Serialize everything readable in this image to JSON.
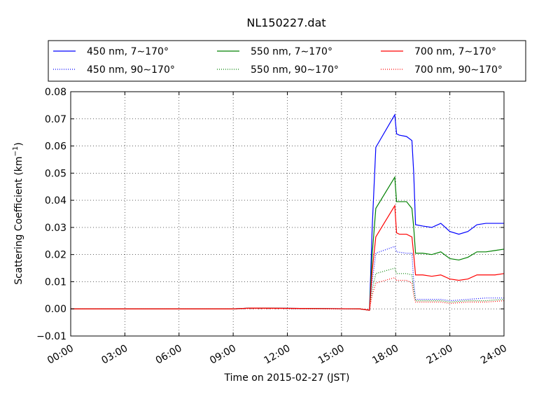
{
  "chart_data": {
    "type": "line",
    "title": "NL150227.dat",
    "xlabel": "Time on 2015-02-27 (JST)",
    "ylabel": "Scattering Coefficient (km",
    "ylabel_sup": "−1",
    "ylabel_close": ")",
    "xlim": [
      0,
      24
    ],
    "ylim": [
      -0.01,
      0.08
    ],
    "x_ticks": [
      0,
      3,
      6,
      9,
      12,
      15,
      18,
      21,
      24
    ],
    "x_tick_labels": [
      "00:00",
      "03:00",
      "06:00",
      "09:00",
      "12:00",
      "15:00",
      "18:00",
      "21:00",
      "24:00"
    ],
    "y_ticks": [
      -0.01,
      0.0,
      0.01,
      0.02,
      0.03,
      0.04,
      0.05,
      0.06,
      0.07,
      0.08
    ],
    "y_tick_labels": [
      "−0.01",
      "0.00",
      "0.01",
      "0.02",
      "0.03",
      "0.04",
      "0.05",
      "0.06",
      "0.07",
      "0.08"
    ],
    "grid": true,
    "legend_position": "top, above plot",
    "series": [
      {
        "name": "450 nm, 7∼170°",
        "color": "#0000ff",
        "style": "solid",
        "x": [
          0,
          9,
          10,
          16,
          16.55,
          16.7,
          16.9,
          17.95,
          18.05,
          18.2,
          18.6,
          18.9,
          19.0,
          19.1,
          19.5,
          20.0,
          20.5,
          21.0,
          21.5,
          22.0,
          22.5,
          23.0,
          23.5,
          24.0
        ],
        "y": [
          0.0,
          0.0,
          0.0003,
          0.0,
          -0.0005,
          0.03,
          0.0595,
          0.0715,
          0.0645,
          0.064,
          0.0635,
          0.062,
          0.05,
          0.031,
          0.0305,
          0.03,
          0.0315,
          0.0285,
          0.0275,
          0.0285,
          0.031,
          0.0315,
          0.0315,
          0.0315
        ]
      },
      {
        "name": "450 nm, 90∼170°",
        "color": "#0000ff",
        "style": "dotted",
        "x": [
          0,
          9,
          10,
          16,
          16.55,
          16.7,
          16.9,
          17.95,
          18.05,
          18.6,
          18.9,
          19.0,
          19.1,
          19.5,
          20.5,
          21.0,
          22.0,
          23.0,
          24.0
        ],
        "y": [
          0.0,
          0.0,
          0.0001,
          0.0,
          -0.0003,
          0.01,
          0.0205,
          0.023,
          0.021,
          0.0205,
          0.0205,
          0.01,
          0.0035,
          0.0035,
          0.0035,
          0.003,
          0.0035,
          0.004,
          0.004
        ]
      },
      {
        "name": "550 nm, 7∼170°",
        "color": "#008000",
        "style": "solid",
        "x": [
          0,
          9,
          10,
          16,
          16.55,
          16.7,
          16.9,
          17.95,
          18.05,
          18.2,
          18.6,
          18.9,
          19.0,
          19.1,
          19.5,
          20.0,
          20.5,
          21.0,
          21.5,
          22.0,
          22.5,
          23.0,
          23.5,
          24.0
        ],
        "y": [
          0.0,
          0.0,
          0.0003,
          0.0,
          -0.0005,
          0.02,
          0.037,
          0.0485,
          0.0395,
          0.0395,
          0.0395,
          0.037,
          0.03,
          0.0205,
          0.0205,
          0.02,
          0.021,
          0.0185,
          0.018,
          0.019,
          0.021,
          0.021,
          0.0215,
          0.022
        ]
      },
      {
        "name": "550 nm, 90∼170°",
        "color": "#008000",
        "style": "dotted",
        "x": [
          0,
          9,
          10,
          16,
          16.55,
          16.7,
          16.9,
          17.95,
          18.05,
          18.6,
          18.9,
          19.0,
          19.1,
          19.5,
          20.5,
          21.0,
          22.0,
          23.0,
          24.0
        ],
        "y": [
          0.0,
          0.0,
          0.0001,
          0.0,
          -0.0003,
          0.007,
          0.013,
          0.015,
          0.013,
          0.013,
          0.0125,
          0.007,
          0.003,
          0.003,
          0.003,
          0.0025,
          0.003,
          0.003,
          0.0035
        ]
      },
      {
        "name": "700 nm, 7∼170°",
        "color": "#ff0000",
        "style": "solid",
        "x": [
          0,
          9,
          10,
          16,
          16.55,
          16.7,
          16.9,
          17.95,
          18.05,
          18.2,
          18.6,
          18.9,
          19.0,
          19.1,
          19.5,
          20.0,
          20.5,
          21.0,
          21.5,
          22.0,
          22.5,
          23.0,
          23.5,
          24.0
        ],
        "y": [
          0.0,
          0.0,
          0.0003,
          0.0,
          -0.0005,
          0.014,
          0.0265,
          0.038,
          0.028,
          0.0275,
          0.0275,
          0.0265,
          0.02,
          0.0125,
          0.0125,
          0.012,
          0.0125,
          0.011,
          0.0105,
          0.011,
          0.0125,
          0.0125,
          0.0125,
          0.013
        ]
      },
      {
        "name": "700 nm, 90∼170°",
        "color": "#ff0000",
        "style": "dotted",
        "x": [
          0,
          9,
          10,
          16,
          16.55,
          16.7,
          16.9,
          17.95,
          18.05,
          18.6,
          18.9,
          19.0,
          19.1,
          19.5,
          20.5,
          21.0,
          22.0,
          23.0,
          24.0
        ],
        "y": [
          0.0,
          0.0,
          0.0001,
          0.0,
          -0.0003,
          0.005,
          0.0095,
          0.0115,
          0.0105,
          0.0105,
          0.0095,
          0.005,
          0.0025,
          0.0025,
          0.0025,
          0.002,
          0.0025,
          0.0025,
          0.003
        ]
      }
    ]
  }
}
